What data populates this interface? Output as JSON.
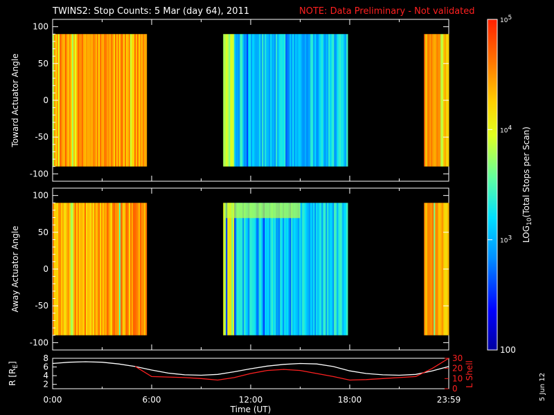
{
  "header": {
    "title": "TWINS2: Stop Counts:  5 Mar (day  64), 2011",
    "note": "NOTE: Data Preliminary - Not validated"
  },
  "side_label": "5 Jun 12",
  "colors": {
    "background": "#000000",
    "axis": "#ffffff",
    "note": "#ff2020",
    "r_line": "#ffffff",
    "lshell_line": "#ff2020"
  },
  "colorbar": {
    "label": "LOG10(Total Stops per Scan)",
    "scale": "log",
    "range": [
      100,
      100000
    ],
    "tick_labels": [
      "100",
      "10^3",
      "10^4",
      "10^5"
    ],
    "tick_values": [
      100,
      1000,
      10000,
      100000
    ],
    "colormap": "rainbow (blue-cyan-yellow-red)"
  },
  "chart_data": [
    {
      "type": "heatmap",
      "panel": "toward",
      "ylabel": "Toward Actuator Angle",
      "ylim": [
        -110,
        110
      ],
      "yticks": [
        100,
        50,
        0,
        -50,
        -100
      ],
      "xlim_hours": [
        0,
        24
      ],
      "data_extent_deg": [
        -90,
        90
      ],
      "segments": [
        {
          "start": "0:00",
          "end": "5:40",
          "level": "high (~10^4.2 - 10^4.8)"
        },
        {
          "start": "10:20",
          "end": "17:50",
          "level": "low (~10^2.5 - 10^3.5)"
        },
        {
          "start": "22:30",
          "end": "23:59",
          "level": "high (~10^4.3 - 10^4.8)"
        }
      ]
    },
    {
      "type": "heatmap",
      "panel": "away",
      "ylabel": "Away Actuator Angle",
      "ylim": [
        -110,
        110
      ],
      "yticks": [
        100,
        50,
        0,
        -50,
        -100
      ],
      "xlim_hours": [
        0,
        24
      ],
      "data_extent_deg": [
        -90,
        90
      ],
      "segments": [
        {
          "start": "0:00",
          "end": "5:40",
          "level": "high (~10^4.2 - 10^4.8)"
        },
        {
          "start": "10:20",
          "end": "17:50",
          "level": "low (~10^2.5 - 10^3.5)"
        },
        {
          "start": "22:30",
          "end": "23:59",
          "level": "high (~10^4.3 - 10^4.8)"
        }
      ]
    },
    {
      "type": "line",
      "panel": "orbit",
      "ylabel": "R [RE]",
      "ylabel_right": "L Shell",
      "ylim": [
        1,
        8
      ],
      "yticks": [
        8,
        6,
        4,
        2
      ],
      "ylim_right": [
        0,
        30
      ],
      "yticks_right": [
        30,
        20,
        10,
        0
      ],
      "xlabel": "Time (UT)",
      "xticks": [
        "0:00",
        "6:00",
        "12:00",
        "18:00",
        "23:59"
      ],
      "x_hours": [
        0,
        1,
        2,
        3,
        4,
        5,
        6,
        7,
        8,
        9,
        10,
        11,
        12,
        13,
        14,
        15,
        16,
        17,
        18,
        19,
        20,
        21,
        22,
        23,
        24
      ],
      "series": [
        {
          "name": "R",
          "values": [
            6.8,
            7.1,
            7.2,
            7.1,
            6.7,
            6.1,
            5.3,
            4.6,
            4.2,
            4.1,
            4.3,
            4.9,
            5.6,
            6.2,
            6.6,
            6.8,
            6.7,
            6.1,
            5.1,
            4.5,
            4.2,
            4.1,
            4.3,
            5.1,
            6.1
          ]
        },
        {
          "name": "L Shell",
          "values": [
            null,
            null,
            null,
            null,
            null,
            22.0,
            12.0,
            11.5,
            11.0,
            10.0,
            8.5,
            11.0,
            15.0,
            18.0,
            19.0,
            18.0,
            15.0,
            12.0,
            8.5,
            9.0,
            10.0,
            11.0,
            12.0,
            20.0,
            30.0
          ]
        }
      ]
    }
  ]
}
